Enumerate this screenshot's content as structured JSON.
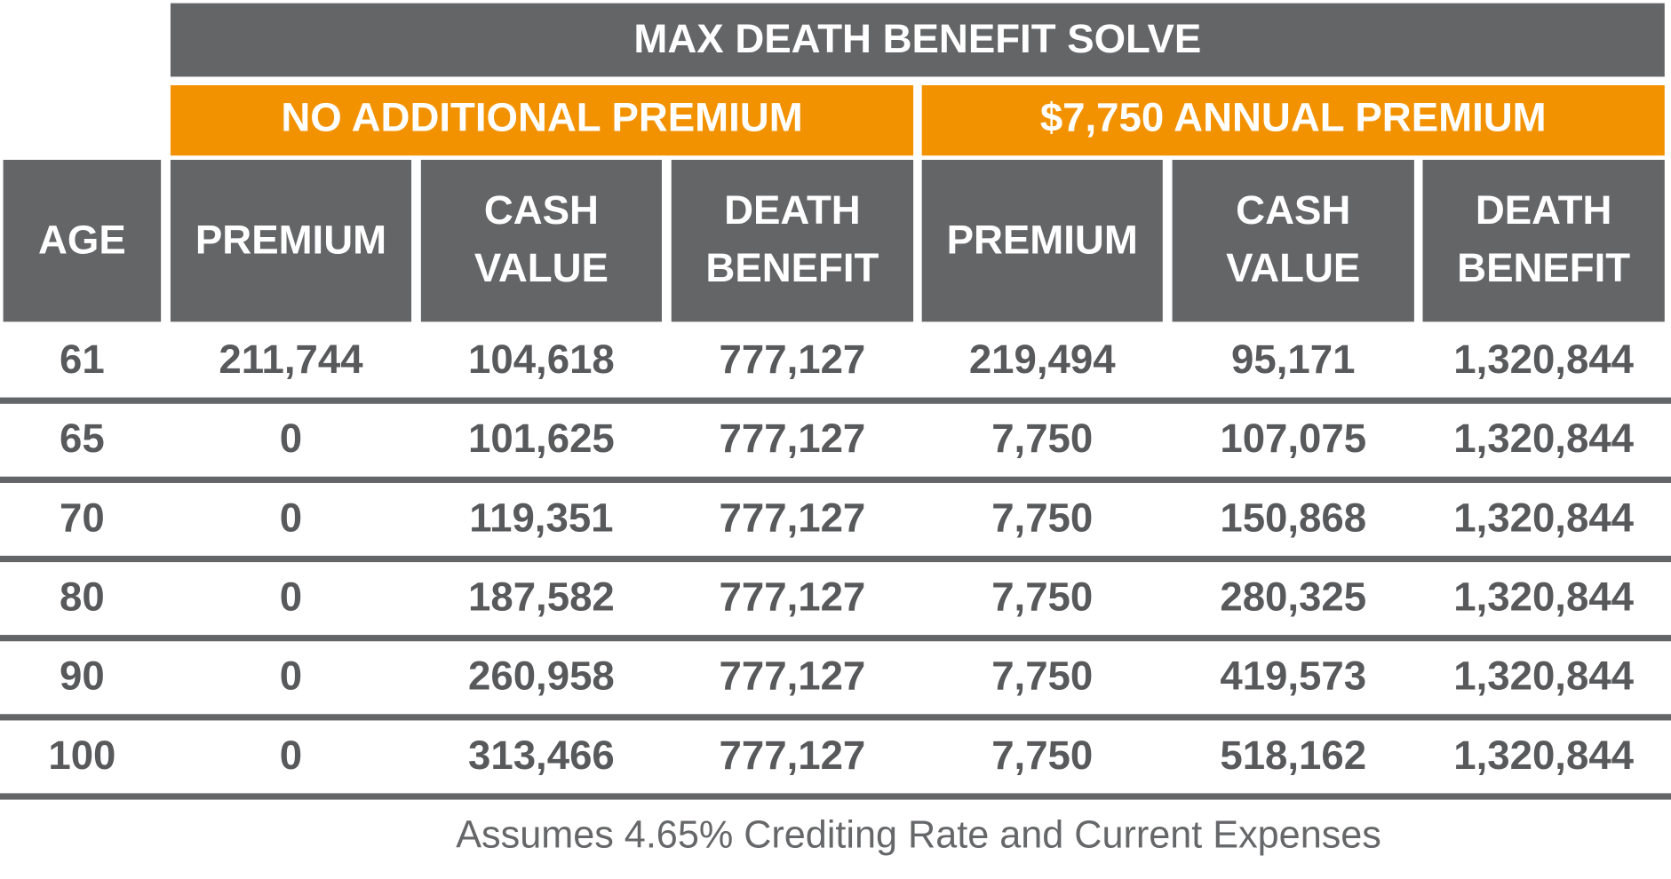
{
  "header": {
    "title": "MAX DEATH BENEFIT SOLVE"
  },
  "groups": [
    "NO ADDITIONAL PREMIUM",
    "$7,750 ANNUAL PREMIUM"
  ],
  "columns": [
    "AGE",
    "PREMIUM",
    "CASH VALUE",
    "DEATH BENEFIT",
    "PREMIUM",
    "CASH VALUE",
    "DEATH BENEFIT"
  ],
  "rows": [
    [
      "61",
      "211,744",
      "104,618",
      "777,127",
      "219,494",
      "95,171",
      "1,320,844"
    ],
    [
      "65",
      "0",
      "101,625",
      "777,127",
      "7,750",
      "107,075",
      "1,320,844"
    ],
    [
      "70",
      "0",
      "119,351",
      "777,127",
      "7,750",
      "150,868",
      "1,320,844"
    ],
    [
      "80",
      "0",
      "187,582",
      "777,127",
      "7,750",
      "280,325",
      "1,320,844"
    ],
    [
      "90",
      "0",
      "260,958",
      "777,127",
      "7,750",
      "419,573",
      "1,320,844"
    ],
    [
      "100",
      "0",
      "313,466",
      "777,127",
      "7,750",
      "518,162",
      "1,320,844"
    ]
  ],
  "footnote": "Assumes 4.65% Crediting Rate and Current Expenses"
}
